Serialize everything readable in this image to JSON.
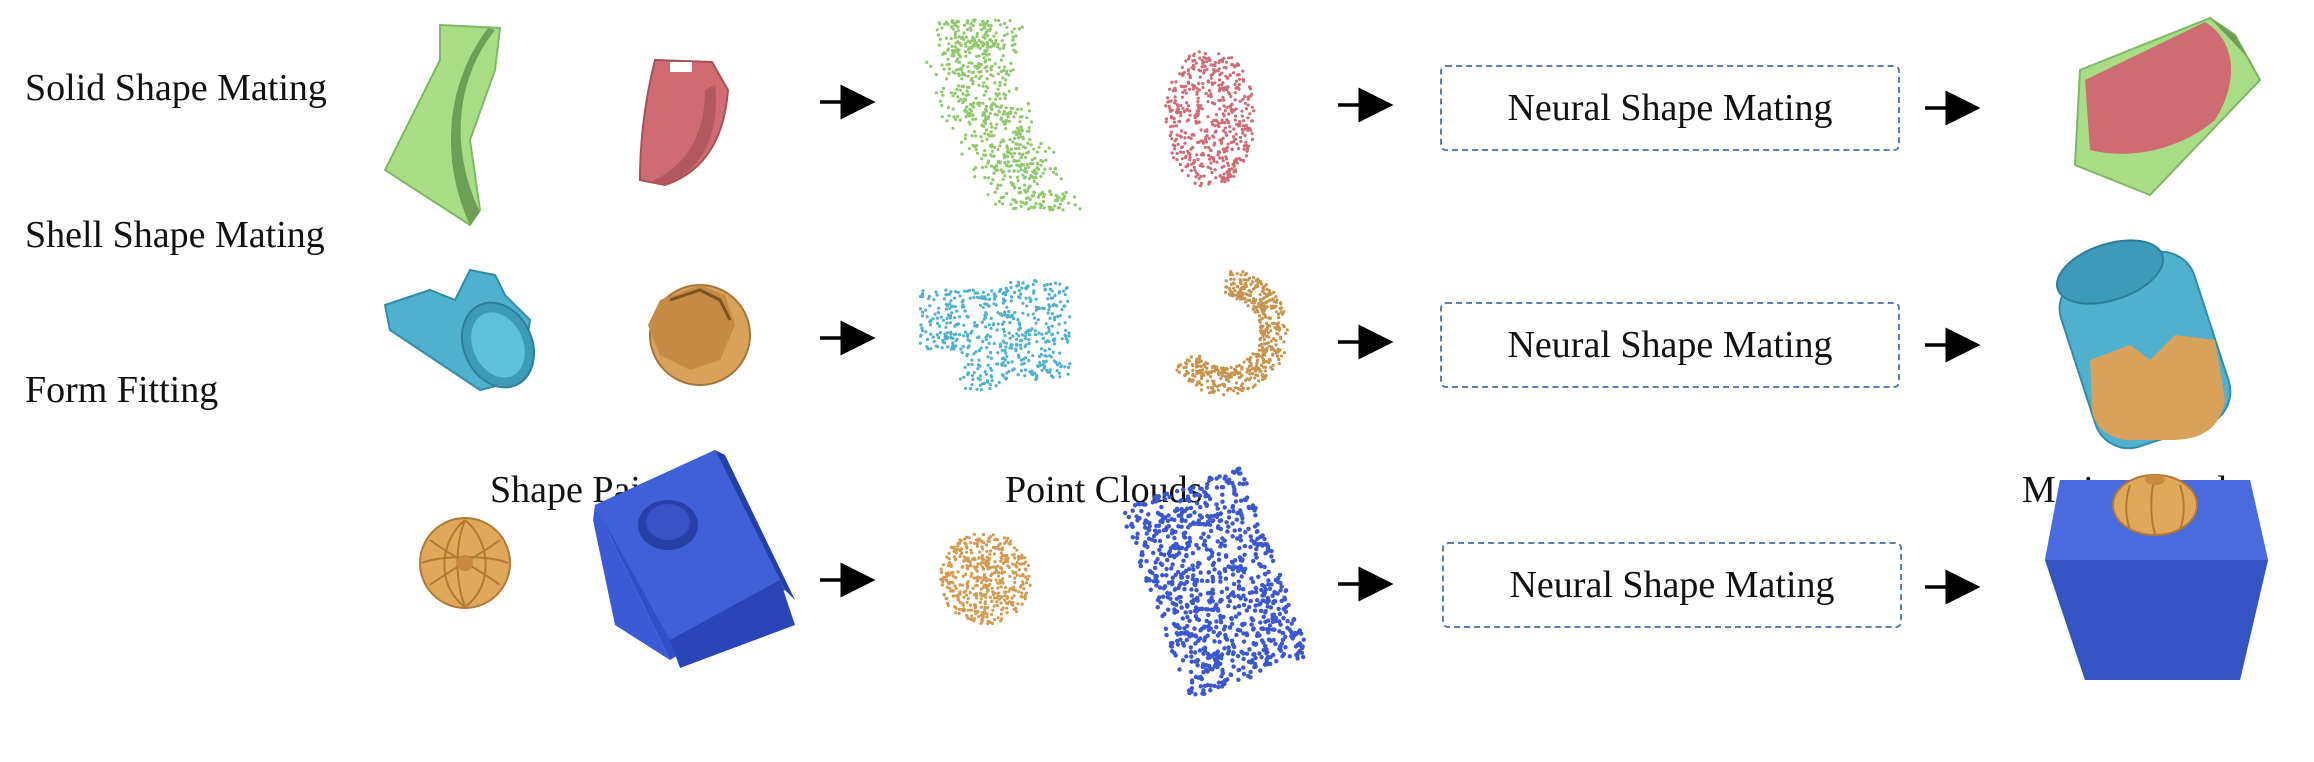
{
  "rows": [
    {
      "label": "Solid Shape Mating",
      "module": "Neural Shape Mating"
    },
    {
      "label": "Shell Shape Mating",
      "module": "Neural Shape Mating"
    },
    {
      "label": "Form Fitting",
      "module": "Neural Shape Mating"
    }
  ],
  "columns": {
    "shape_pairs": "Shape Pairs",
    "point_clouds": "Point Clouds",
    "mating_results": "Mating Results"
  },
  "colors": {
    "green": "#a8dd86",
    "red": "#cf6c73",
    "cyan": "#4fb1cd",
    "orange": "#d9a25a",
    "blue": "#3f5fd1",
    "box_border": "#5b7fb3"
  }
}
